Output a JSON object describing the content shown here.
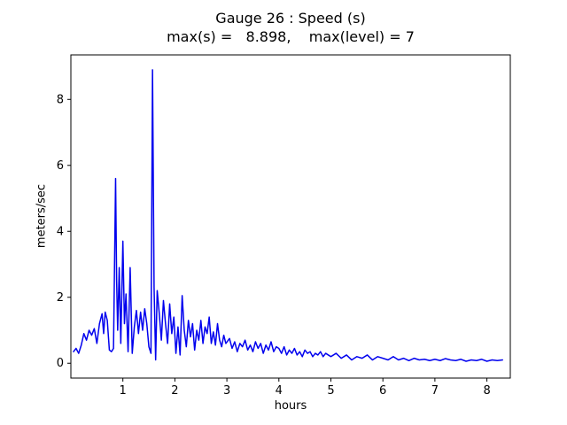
{
  "figure": {
    "background": "#ffffff",
    "axis_color": "#000000"
  },
  "chart_data": {
    "type": "line",
    "title": "Gauge 26 : Speed (s)",
    "subtitle": "max(s) =   8.898,    max(level) = 7",
    "xlabel": "hours",
    "ylabel": "meters/sec",
    "xlim": [
      0,
      8.45
    ],
    "ylim": [
      -0.45,
      9.35
    ],
    "xticks": [
      1,
      2,
      3,
      4,
      5,
      6,
      7,
      8
    ],
    "yticks": [
      0,
      2,
      4,
      6,
      8
    ],
    "grid": false,
    "legend": "none",
    "line_color": "#0000ee",
    "line_width": 1.5,
    "max_s": 8.898,
    "max_level": 7,
    "series": [
      {
        "name": "speed",
        "x": [
          0.05,
          0.1,
          0.15,
          0.2,
          0.25,
          0.3,
          0.35,
          0.4,
          0.45,
          0.5,
          0.55,
          0.6,
          0.63,
          0.66,
          0.7,
          0.74,
          0.78,
          0.82,
          0.86,
          0.88,
          0.9,
          0.93,
          0.96,
          1.0,
          1.03,
          1.06,
          1.1,
          1.14,
          1.18,
          1.22,
          1.26,
          1.3,
          1.34,
          1.38,
          1.42,
          1.46,
          1.5,
          1.54,
          1.57,
          1.6,
          1.63,
          1.66,
          1.7,
          1.74,
          1.78,
          1.82,
          1.86,
          1.9,
          1.94,
          1.98,
          2.02,
          2.06,
          2.1,
          2.14,
          2.18,
          2.22,
          2.26,
          2.3,
          2.34,
          2.38,
          2.42,
          2.46,
          2.5,
          2.54,
          2.58,
          2.62,
          2.66,
          2.7,
          2.74,
          2.78,
          2.82,
          2.86,
          2.9,
          2.94,
          2.98,
          3.05,
          3.1,
          3.15,
          3.2,
          3.25,
          3.3,
          3.35,
          3.4,
          3.45,
          3.5,
          3.55,
          3.6,
          3.65,
          3.7,
          3.75,
          3.8,
          3.85,
          3.9,
          3.95,
          4.0,
          4.05,
          4.1,
          4.15,
          4.2,
          4.25,
          4.3,
          4.35,
          4.4,
          4.45,
          4.5,
          4.55,
          4.6,
          4.65,
          4.7,
          4.75,
          4.8,
          4.85,
          4.9,
          4.95,
          5.0,
          5.1,
          5.2,
          5.3,
          5.4,
          5.5,
          5.6,
          5.7,
          5.8,
          5.9,
          6.0,
          6.1,
          6.2,
          6.3,
          6.4,
          6.5,
          6.6,
          6.7,
          6.8,
          6.9,
          7.0,
          7.1,
          7.2,
          7.3,
          7.4,
          7.5,
          7.6,
          7.7,
          7.8,
          7.9,
          8.0,
          8.1,
          8.2,
          8.3
        ],
        "y": [
          0.35,
          0.45,
          0.3,
          0.55,
          0.9,
          0.7,
          1.0,
          0.85,
          1.05,
          0.6,
          1.2,
          1.5,
          0.9,
          1.55,
          1.3,
          0.4,
          0.35,
          0.45,
          5.6,
          2.5,
          1.0,
          2.9,
          0.6,
          3.7,
          1.2,
          2.1,
          0.35,
          2.9,
          0.3,
          1.1,
          1.6,
          0.9,
          1.55,
          1.0,
          1.65,
          1.2,
          0.5,
          0.3,
          8.898,
          2.3,
          0.1,
          2.2,
          1.5,
          0.7,
          1.9,
          1.2,
          0.6,
          1.8,
          0.9,
          1.4,
          0.3,
          1.1,
          0.25,
          2.05,
          1.0,
          0.5,
          1.3,
          0.8,
          1.2,
          0.4,
          1.0,
          0.7,
          1.3,
          0.6,
          1.1,
          0.9,
          1.4,
          0.6,
          0.95,
          0.55,
          1.2,
          0.7,
          0.5,
          0.85,
          0.6,
          0.75,
          0.45,
          0.65,
          0.35,
          0.6,
          0.5,
          0.7,
          0.4,
          0.55,
          0.35,
          0.65,
          0.45,
          0.6,
          0.3,
          0.55,
          0.4,
          0.65,
          0.35,
          0.5,
          0.45,
          0.3,
          0.5,
          0.25,
          0.4,
          0.3,
          0.45,
          0.25,
          0.35,
          0.2,
          0.4,
          0.3,
          0.35,
          0.2,
          0.3,
          0.25,
          0.35,
          0.2,
          0.3,
          0.25,
          0.2,
          0.3,
          0.15,
          0.25,
          0.1,
          0.2,
          0.15,
          0.25,
          0.1,
          0.2,
          0.15,
          0.1,
          0.2,
          0.1,
          0.15,
          0.08,
          0.15,
          0.1,
          0.12,
          0.08,
          0.12,
          0.08,
          0.14,
          0.1,
          0.08,
          0.12,
          0.06,
          0.1,
          0.08,
          0.12,
          0.06,
          0.1,
          0.08,
          0.1
        ]
      }
    ]
  }
}
